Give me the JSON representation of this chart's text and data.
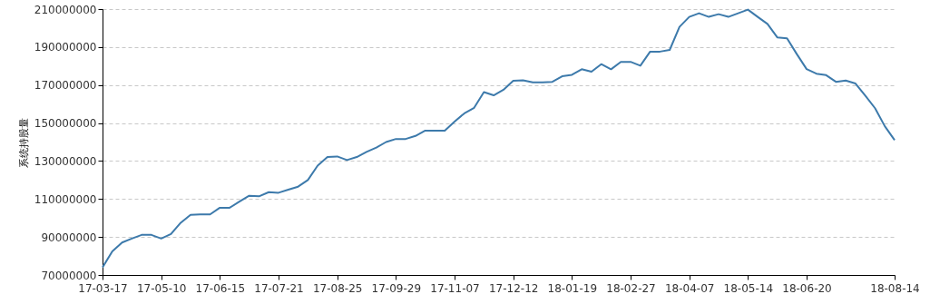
{
  "chart_data": {
    "type": "line",
    "ylabel": "系统持股量",
    "categories": [
      "17-03-17",
      null,
      null,
      null,
      null,
      null,
      "17-05-10",
      null,
      null,
      null,
      null,
      null,
      "17-06-15",
      null,
      null,
      null,
      null,
      null,
      "17-07-21",
      null,
      null,
      null,
      null,
      null,
      "17-08-25",
      null,
      null,
      null,
      null,
      null,
      "17-09-29",
      null,
      null,
      null,
      null,
      null,
      "17-11-07",
      null,
      null,
      null,
      null,
      null,
      "17-12-12",
      null,
      null,
      null,
      null,
      null,
      "18-01-19",
      null,
      null,
      null,
      null,
      null,
      "18-02-27",
      null,
      null,
      null,
      null,
      null,
      "18-04-07",
      null,
      null,
      null,
      null,
      null,
      "18-05-14",
      null,
      null,
      null,
      null,
      null,
      "18-06-20",
      null,
      null,
      null,
      null,
      null,
      null,
      null,
      null,
      "18-08-14"
    ],
    "series": [
      {
        "color": "#3d7aab",
        "values": [
          74000000,
          82400000,
          87100000,
          89200000,
          91100000,
          91100000,
          89200000,
          91600000,
          97500000,
          101700000,
          101900000,
          101900000,
          105400000,
          105400000,
          108600000,
          111700000,
          111400000,
          113600000,
          113300000,
          114900000,
          116500000,
          120000000,
          127600000,
          132100000,
          132400000,
          130500000,
          132100000,
          134800000,
          137100000,
          140000000,
          141600000,
          141600000,
          143200000,
          146000000,
          146000000,
          146000000,
          150800000,
          155100000,
          158000000,
          166300000,
          164600000,
          167500000,
          172200000,
          172500000,
          171400000,
          171400000,
          171700000,
          174600000,
          175400000,
          178300000,
          177000000,
          181000000,
          178300000,
          182200000,
          182200000,
          180200000,
          187600000,
          187600000,
          188500000,
          200600000,
          205900000,
          207800000,
          205900000,
          207300000,
          205900000,
          207800000,
          209700000,
          205900000,
          202200000,
          195100000,
          194600000,
          186300000,
          178400000,
          176000000,
          175200000,
          171700000,
          172400000,
          170800000,
          164400000,
          157800000,
          148300000,
          141000000
        ]
      }
    ],
    "ylim": [
      70000000,
      210000000
    ],
    "yticks": [
      70000000,
      90000000,
      110000000,
      130000000,
      150000000,
      170000000,
      190000000,
      210000000
    ],
    "grid": "y",
    "marker": "none",
    "line_style": "solid"
  }
}
